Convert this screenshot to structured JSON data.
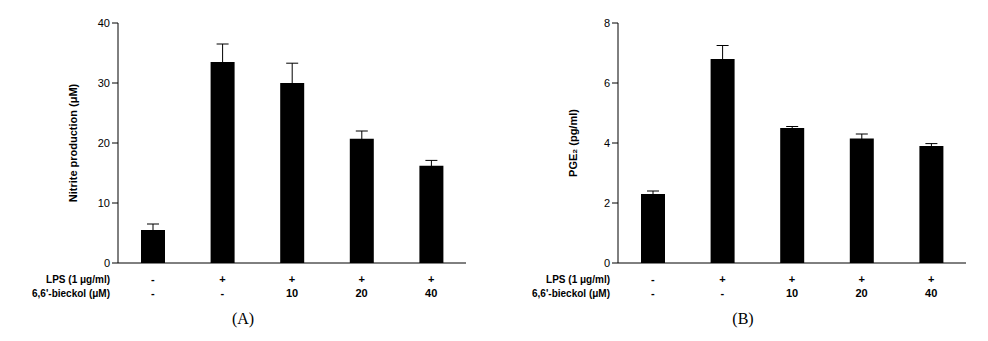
{
  "chart_data": [
    {
      "type": "bar",
      "title": "(A)",
      "y_label": "Nitrite production (μM)",
      "x_rows": [
        {
          "label": "LPS (1 μg/ml)",
          "values": [
            "-",
            "+",
            "+",
            "+",
            "+"
          ]
        },
        {
          "label": "6,6'-bieckol (μM)",
          "values": [
            "-",
            "-",
            "10",
            "20",
            "40"
          ]
        }
      ],
      "values": [
        5.5,
        33.5,
        30,
        20.7,
        16.2
      ],
      "errors": [
        1,
        3,
        3.3,
        1.3,
        0.9
      ],
      "color": "#000000",
      "ylim": [
        0,
        40
      ],
      "yticks": [
        0,
        10,
        20,
        30,
        40
      ],
      "grid": false
    },
    {
      "type": "bar",
      "title": "(B)",
      "y_label": "PGE₂ (pg/ml)",
      "x_rows": [
        {
          "label": "LPS (1 μg/ml)",
          "values": [
            "-",
            "+",
            "+",
            "+",
            "+"
          ]
        },
        {
          "label": "6,6'-bieckol (μM)",
          "values": [
            "-",
            "-",
            "10",
            "20",
            "40"
          ]
        }
      ],
      "values": [
        2.3,
        6.8,
        4.5,
        4.15,
        3.9
      ],
      "errors": [
        0.1,
        0.45,
        0.05,
        0.15,
        0.08
      ],
      "color": "#000000",
      "ylim": [
        0,
        8
      ],
      "yticks": [
        0,
        2,
        4,
        6,
        8
      ],
      "grid": false
    }
  ]
}
